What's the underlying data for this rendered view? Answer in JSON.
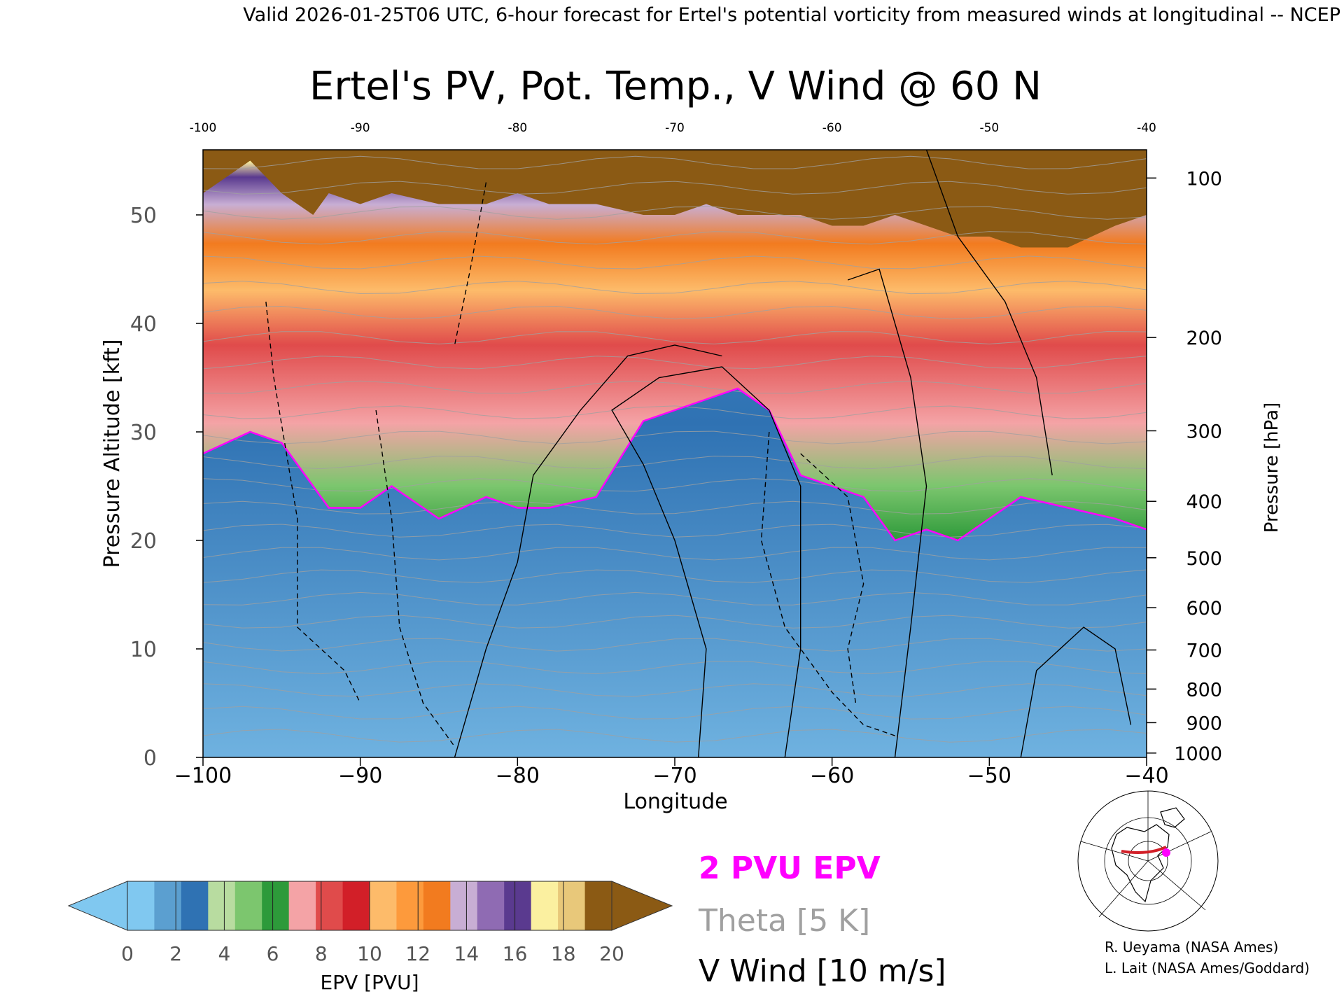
{
  "header": {
    "valid_line": "Valid 2026-01-25T06 UTC, 6-hour forecast for Ertel's potential vorticity from measured winds at longitudinal -- NCEP"
  },
  "chart_data": {
    "type": "heatmap",
    "title": "Ertel's PV, Pot. Temp., V Wind @ 60 N",
    "xlabel": "Longitude",
    "ylabel_left": "Pressure Altitude [kft]",
    "ylabel_right": "Pressure [hPa]",
    "xlim": [
      -100,
      -40
    ],
    "ylim_kft": [
      0,
      56
    ],
    "x_ticks": [
      -100,
      -90,
      -80,
      -70,
      -60,
      -50,
      -40
    ],
    "x_tick_labels": [
      "−100",
      "−90",
      "−80",
      "−70",
      "−60",
      "−50",
      "−40"
    ],
    "top_tick_labels": [
      "-100",
      "-90",
      "-80",
      "-70",
      "-60",
      "-50",
      "-40"
    ],
    "y_left_ticks": [
      0,
      10,
      20,
      30,
      40,
      50
    ],
    "y_right_ticks": [
      {
        "hpa": "1000",
        "kft": 0.4
      },
      {
        "hpa": "900",
        "kft": 3.2
      },
      {
        "hpa": "800",
        "kft": 6.3
      },
      {
        "hpa": "700",
        "kft": 9.9
      },
      {
        "hpa": "600",
        "kft": 13.8
      },
      {
        "hpa": "500",
        "kft": 18.4
      },
      {
        "hpa": "400",
        "kft": 23.6
      },
      {
        "hpa": "300",
        "kft": 30.1
      },
      {
        "hpa": "200",
        "kft": 38.7
      },
      {
        "hpa": "100",
        "kft": 53.4
      }
    ],
    "colorbar": {
      "label": "EPV [PVU]",
      "ticks": [
        "0",
        "2",
        "4",
        "6",
        "8",
        "10",
        "12",
        "14",
        "16",
        "18",
        "20"
      ],
      "colors": [
        "#80c8f0",
        "#5b9fd0",
        "#2f72b3",
        "#b8dca0",
        "#7cc66e",
        "#2d9a3a",
        "#f4a3a6",
        "#e04b4b",
        "#d21f28",
        "#fdbb6a",
        "#fd9a3c",
        "#f27b1f",
        "#c8aed4",
        "#8f6bb3",
        "#5a3a8f",
        "#fbf0a0",
        "#e8c87a",
        "#8b5a14"
      ],
      "under_color": "#80c8f0",
      "over_color": "#8b5a14"
    },
    "pv_profile": {
      "x": [
        -100,
        -97,
        -95,
        -93,
        -92,
        -90,
        -88,
        -85,
        -82,
        -80,
        -78,
        -75,
        -72,
        -70,
        -68,
        -66,
        -64,
        -62,
        -60,
        -58,
        -56,
        -54,
        -52,
        -50,
        -48,
        -45,
        -42,
        -40
      ],
      "tropopause_2pvu_kft": [
        28,
        30,
        29,
        25,
        23,
        23,
        25,
        22,
        24,
        23,
        23,
        24,
        31,
        32,
        33,
        34,
        32,
        26,
        25,
        24,
        20,
        21,
        20,
        22,
        24,
        23,
        22,
        21
      ],
      "stratosphere_top_kft": [
        52,
        55,
        52,
        50,
        52,
        51,
        52,
        51,
        51,
        52,
        51,
        51,
        50,
        50,
        51,
        50,
        50,
        50,
        49,
        49,
        50,
        49,
        48,
        48,
        47,
        47,
        49,
        50
      ]
    },
    "legend": [
      {
        "label": "2 PVU EPV",
        "color": "#ff00ff"
      },
      {
        "label": "Theta [5 K]",
        "color": "#a0a0a0"
      },
      {
        "label": "V Wind [10 m/s]",
        "color": "#000000"
      }
    ],
    "grid": false
  },
  "credits": [
    "R. Ueyama (NASA Ames)",
    "L. Lait (NASA Ames/Goddard)"
  ],
  "colors": {
    "pv_line": "#ff00ff",
    "theta_line": "#a0a0a0",
    "wind_line": "#000000"
  }
}
